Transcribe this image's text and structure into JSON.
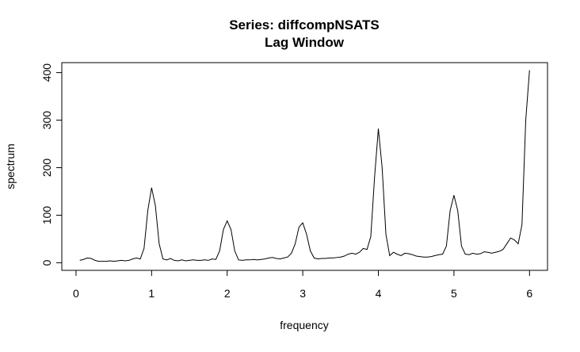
{
  "chart_data": {
    "type": "line",
    "title": "Series: diffcompNSATS",
    "subtitle": "Lag Window",
    "x_label": "frequency",
    "y_label": "spectrum",
    "color": "#000000",
    "xlim": [
      -0.188,
      6.238
    ],
    "ylim": [
      -16,
      421
    ],
    "xticks": [
      0,
      1,
      2,
      3,
      4,
      5,
      6
    ],
    "yticks": [
      0,
      100,
      200,
      300,
      400
    ],
    "x": [
      0.05,
      0.1,
      0.15,
      0.2,
      0.25,
      0.3,
      0.35,
      0.4,
      0.45,
      0.5,
      0.55,
      0.6,
      0.65,
      0.7,
      0.75,
      0.8,
      0.85,
      0.9,
      0.95,
      1.0,
      1.05,
      1.1,
      1.15,
      1.2,
      1.25,
      1.3,
      1.35,
      1.4,
      1.45,
      1.5,
      1.55,
      1.6,
      1.65,
      1.7,
      1.75,
      1.8,
      1.85,
      1.9,
      1.95,
      2.0,
      2.05,
      2.1,
      2.15,
      2.2,
      2.25,
      2.3,
      2.35,
      2.4,
      2.45,
      2.5,
      2.55,
      2.6,
      2.65,
      2.7,
      2.75,
      2.8,
      2.85,
      2.9,
      2.95,
      3.0,
      3.05,
      3.1,
      3.15,
      3.2,
      3.25,
      3.3,
      3.35,
      3.4,
      3.45,
      3.5,
      3.55,
      3.6,
      3.65,
      3.7,
      3.75,
      3.8,
      3.85,
      3.9,
      3.95,
      4.0,
      4.05,
      4.1,
      4.15,
      4.2,
      4.25,
      4.3,
      4.35,
      4.4,
      4.45,
      4.5,
      4.55,
      4.6,
      4.65,
      4.7,
      4.75,
      4.8,
      4.85,
      4.9,
      4.95,
      5.0,
      5.05,
      5.1,
      5.15,
      5.2,
      5.25,
      5.3,
      5.35,
      5.4,
      5.45,
      5.5,
      5.55,
      5.6,
      5.65,
      5.7,
      5.75,
      5.8,
      5.85,
      5.9,
      5.95,
      6.0
    ],
    "values": [
      5,
      7,
      10,
      9,
      5,
      3,
      3,
      3,
      4,
      3,
      4,
      5,
      4,
      5,
      8,
      10,
      8,
      30,
      110,
      158,
      120,
      40,
      8,
      6,
      9,
      5,
      4,
      6,
      4,
      5,
      6,
      5,
      5,
      6,
      5,
      8,
      7,
      25,
      70,
      88,
      70,
      25,
      6,
      5,
      6,
      6,
      7,
      6,
      7,
      8,
      10,
      11,
      9,
      8,
      10,
      12,
      20,
      40,
      75,
      84,
      60,
      25,
      10,
      8,
      9,
      9,
      10,
      10,
      11,
      12,
      14,
      18,
      20,
      18,
      22,
      30,
      28,
      55,
      180,
      282,
      200,
      60,
      15,
      22,
      18,
      15,
      20,
      19,
      17,
      14,
      13,
      12,
      12,
      13,
      15,
      17,
      18,
      35,
      110,
      142,
      110,
      35,
      18,
      17,
      20,
      18,
      19,
      23,
      22,
      20,
      22,
      24,
      28,
      40,
      52,
      48,
      40,
      80,
      300,
      405
    ]
  }
}
